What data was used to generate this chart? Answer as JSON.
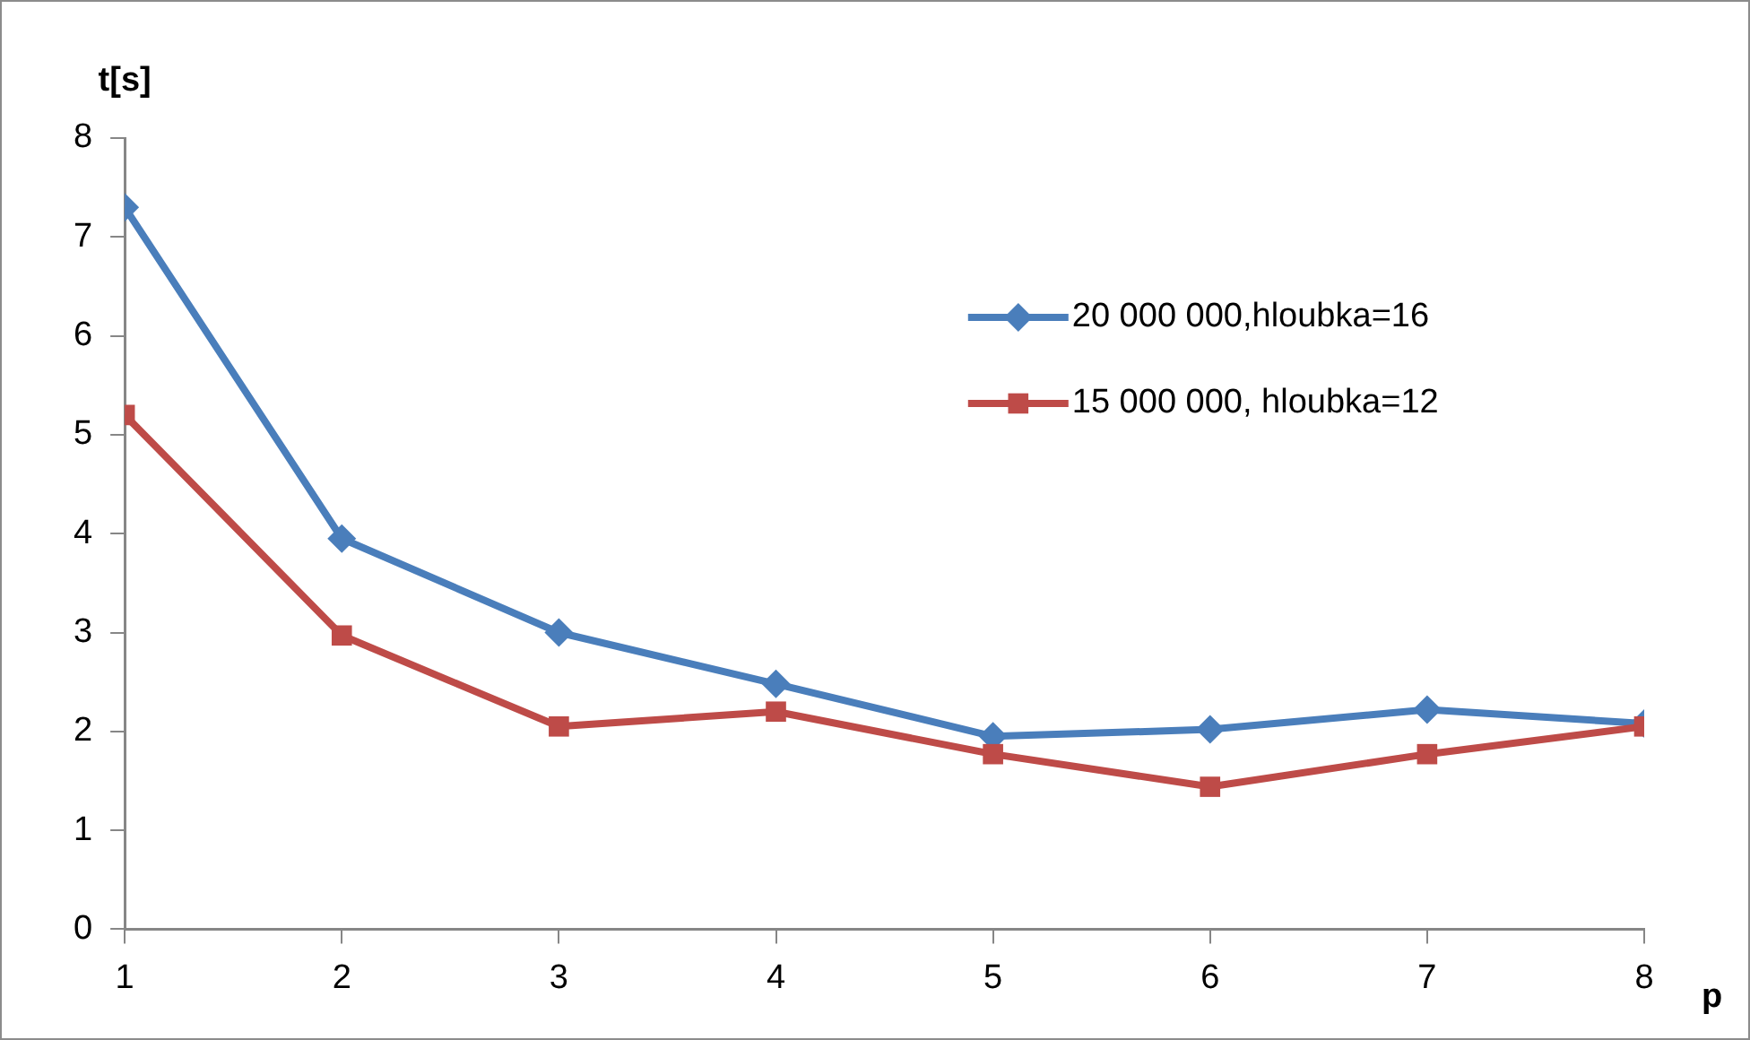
{
  "chart_data": {
    "type": "line",
    "xlabel": "p",
    "ylabel": "t[s]",
    "x": [
      1,
      2,
      3,
      4,
      5,
      6,
      7,
      8
    ],
    "xlim": [
      1,
      8
    ],
    "xticks": [
      1,
      2,
      3,
      4,
      5,
      6,
      7,
      8
    ],
    "ylim": [
      0,
      8
    ],
    "yticks": [
      0,
      1,
      2,
      3,
      4,
      5,
      6,
      7,
      8
    ],
    "grid": false,
    "legend": "right",
    "series": [
      {
        "name": "20 000 000,hloubka=16",
        "color": "#4a7ebb",
        "marker": "diamond",
        "values": [
          7.3,
          3.95,
          3.0,
          2.48,
          1.95,
          2.02,
          2.22,
          2.08
        ]
      },
      {
        "name": "15 000 000, hloubka=12",
        "color": "#be4b48",
        "marker": "square",
        "values": [
          5.2,
          2.97,
          2.05,
          2.2,
          1.77,
          1.44,
          1.77,
          2.05
        ]
      }
    ]
  }
}
